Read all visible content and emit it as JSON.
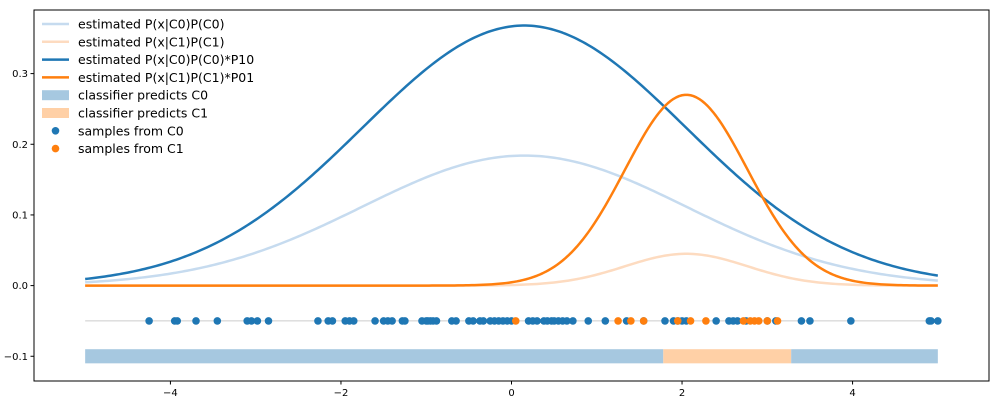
{
  "chart_data": {
    "type": "line",
    "title": "",
    "xlabel": "",
    "ylabel": "",
    "xlim": [
      -5.6,
      5.6
    ],
    "ylim": [
      -0.135,
      0.39
    ],
    "x_ticks": [
      -4,
      -2,
      0,
      2,
      4
    ],
    "x_tick_labels": [
      "−4",
      "−2",
      "0",
      "2",
      "4"
    ],
    "y_ticks": [
      -0.1,
      0.0,
      0.1,
      0.2,
      0.3
    ],
    "y_tick_labels": [
      "−0.1",
      "0.0",
      "0.1",
      "0.2",
      "0.3"
    ],
    "grid": false,
    "legend_position": "top-left",
    "colors": {
      "c0": "#1f77b4",
      "c1": "#ff7f0e",
      "c0_light": "#c6dbef",
      "c1_light": "#fddbc0",
      "band_c0": "#a6c8e0",
      "band_c1": "#ffd0a6",
      "sample_line": "#cccccc"
    },
    "x_range": [
      -5,
      5
    ],
    "series": [
      {
        "name": "estimated P(x|C0)P(C0)",
        "kind": "gaussian",
        "amp": 0.184,
        "mu": 0.15,
        "sigma": 1.9,
        "color": "#c6dbef",
        "width": 2.5
      },
      {
        "name": "estimated P(x|C1)P(C1)",
        "kind": "gaussian",
        "amp": 0.045,
        "mu": 2.05,
        "sigma": 0.72,
        "color": "#fddbc0",
        "width": 2.5
      },
      {
        "name": "estimated P(x|C0)P(C0)*P10",
        "kind": "gaussian",
        "amp": 0.368,
        "mu": 0.15,
        "sigma": 1.9,
        "color": "#1f77b4",
        "width": 2.5
      },
      {
        "name": "estimated P(x|C1)P(C1)*P01",
        "kind": "gaussian",
        "amp": 0.27,
        "mu": 2.05,
        "sigma": 0.72,
        "color": "#ff7f0e",
        "width": 2.5
      }
    ],
    "bands": [
      {
        "name": "classifier predicts C0",
        "from": -5.0,
        "to": 1.78,
        "y_low": -0.11,
        "y_high": -0.09,
        "color": "#a6c8e0"
      },
      {
        "name": "classifier predicts C1",
        "from": 1.78,
        "to": 3.28,
        "y_low": -0.11,
        "y_high": -0.09,
        "color": "#ffd0a6"
      },
      {
        "name": "",
        "from": 3.28,
        "to": 5.0,
        "y_low": -0.11,
        "y_high": -0.09,
        "color": "#a6c8e0"
      }
    ],
    "sample_y": -0.05,
    "samples": [
      {
        "name": "samples from C0",
        "color": "#1f77b4",
        "x": [
          -4.25,
          -3.95,
          -3.92,
          -3.7,
          -3.45,
          -3.1,
          -3.05,
          -2.98,
          -2.85,
          -2.27,
          -2.15,
          -2.1,
          -1.95,
          -1.9,
          -1.85,
          -1.6,
          -1.5,
          -1.45,
          -1.4,
          -1.28,
          -1.25,
          -1.05,
          -1.0,
          -0.98,
          -0.95,
          -0.92,
          -0.88,
          -0.7,
          -0.65,
          -0.5,
          -0.45,
          -0.37,
          -0.33,
          -0.25,
          -0.2,
          -0.15,
          -0.1,
          -0.05,
          0.0,
          0.2,
          0.25,
          0.3,
          0.38,
          0.42,
          0.47,
          0.5,
          0.55,
          0.6,
          0.65,
          0.72,
          0.9,
          1.1,
          1.35,
          1.55,
          1.8,
          1.9,
          1.95,
          2.0,
          2.05,
          2.4,
          2.55,
          2.6,
          2.65,
          2.75,
          3.0,
          3.1,
          3.4,
          3.5,
          3.98,
          4.9,
          4.92,
          5.0
        ]
      },
      {
        "name": "samples from C1",
        "color": "#ff7f0e",
        "x": [
          0.05,
          1.25,
          1.4,
          1.55,
          1.95,
          2.1,
          2.28,
          2.72,
          2.8,
          2.85,
          2.9,
          3.0,
          3.12
        ]
      }
    ]
  }
}
